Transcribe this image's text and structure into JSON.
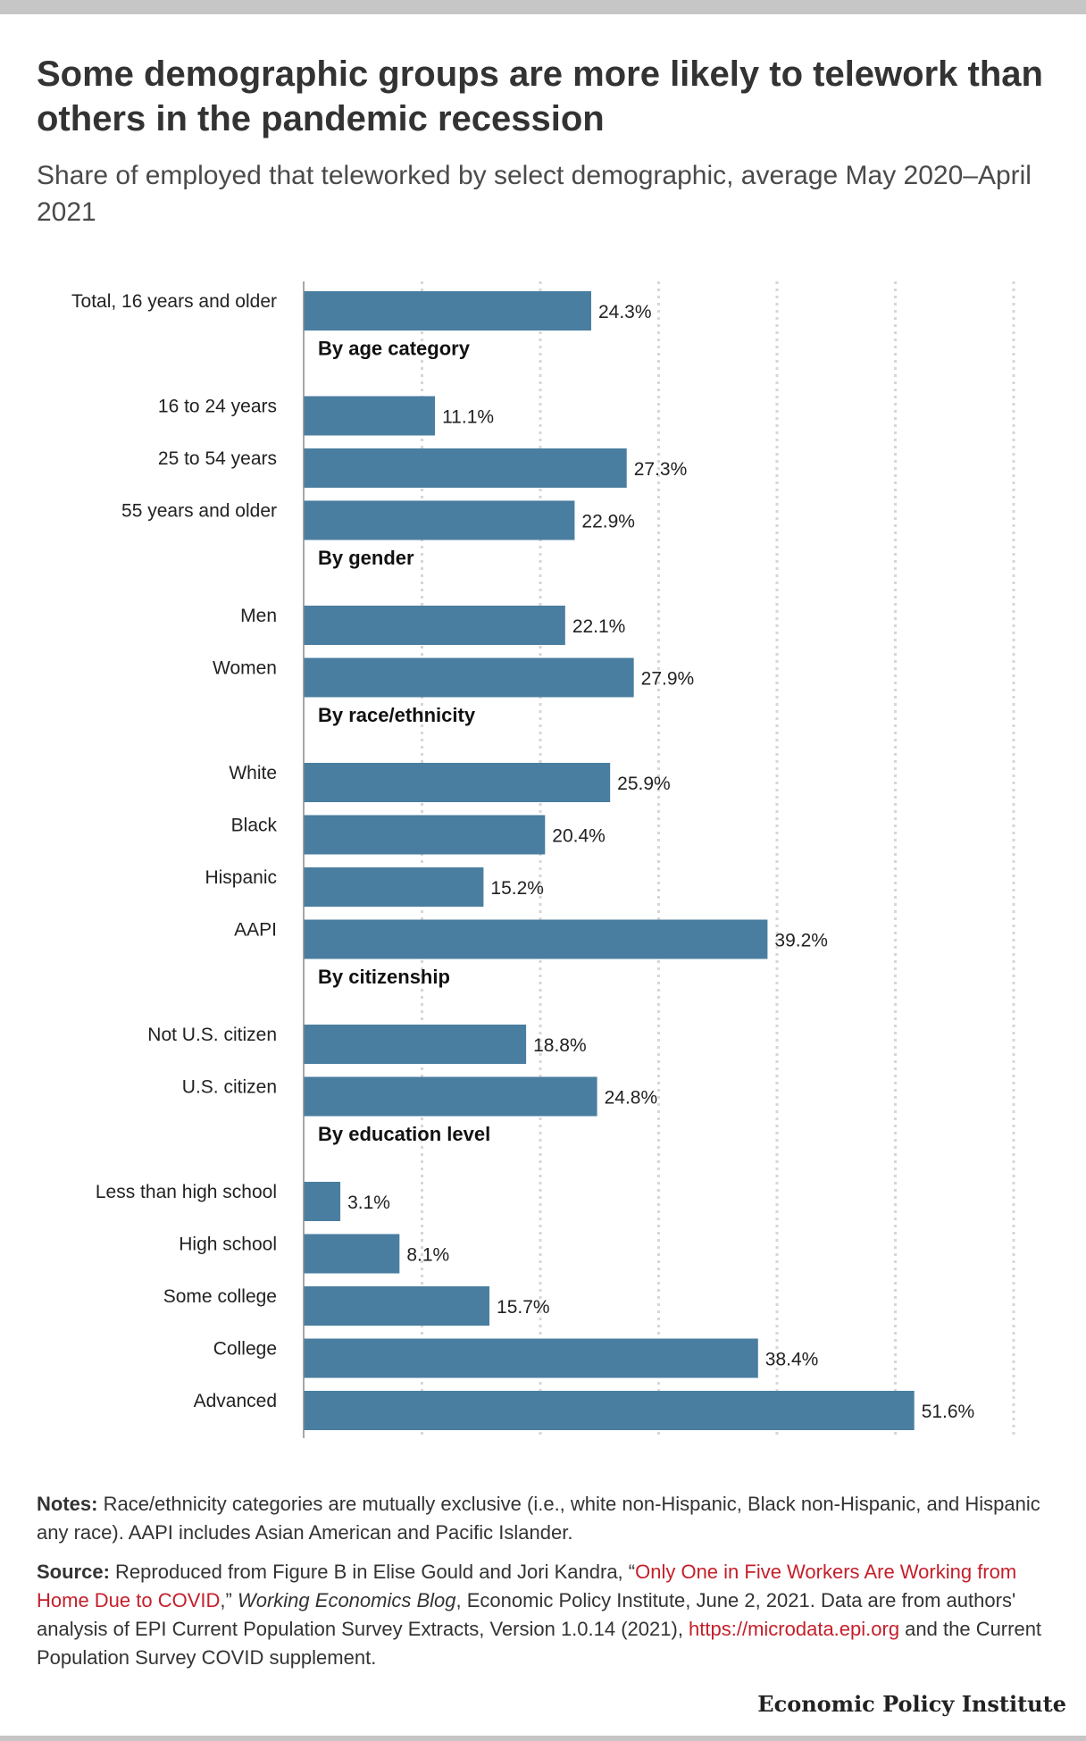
{
  "title": "Some demographic groups are more likely to telework than others in the pandemic recession",
  "subtitle": "Share of employed that teleworked by select demographic, average May 2020–April 2021",
  "chart_data": {
    "type": "bar",
    "orientation": "horizontal",
    "xlim": [
      0,
      60
    ],
    "gridlines": [
      10,
      20,
      30,
      40,
      50,
      60
    ],
    "grid": "vertical dotted",
    "bar_color": "#4a7ea0",
    "value_suffix": "%",
    "rows": [
      {
        "kind": "bar",
        "label": "Total, 16 years and older",
        "value": 24.3
      },
      {
        "kind": "header",
        "label": "By age category"
      },
      {
        "kind": "bar",
        "label": "16 to 24 years",
        "value": 11.1
      },
      {
        "kind": "bar",
        "label": "25 to 54 years",
        "value": 27.3
      },
      {
        "kind": "bar",
        "label": "55 years and older",
        "value": 22.9
      },
      {
        "kind": "header",
        "label": "By gender"
      },
      {
        "kind": "bar",
        "label": "Men",
        "value": 22.1
      },
      {
        "kind": "bar",
        "label": "Women",
        "value": 27.9
      },
      {
        "kind": "header",
        "label": "By race/ethnicity"
      },
      {
        "kind": "bar",
        "label": "White",
        "value": 25.9
      },
      {
        "kind": "bar",
        "label": "Black",
        "value": 20.4
      },
      {
        "kind": "bar",
        "label": "Hispanic",
        "value": 15.2
      },
      {
        "kind": "bar",
        "label": "AAPI",
        "value": 39.2
      },
      {
        "kind": "header",
        "label": "By citizenship"
      },
      {
        "kind": "bar",
        "label": "Not U.S. citizen",
        "value": 18.8
      },
      {
        "kind": "bar",
        "label": "U.S. citizen",
        "value": 24.8
      },
      {
        "kind": "header",
        "label": "By education level"
      },
      {
        "kind": "bar",
        "label": "Less than high school",
        "value": 3.1
      },
      {
        "kind": "bar",
        "label": "High school",
        "value": 8.1
      },
      {
        "kind": "bar",
        "label": "Some college",
        "value": 15.7
      },
      {
        "kind": "bar",
        "label": "College",
        "value": 38.4
      },
      {
        "kind": "bar",
        "label": "Advanced",
        "value": 51.6
      }
    ]
  },
  "notes": {
    "lead": "Notes:",
    "text": " Race/ethnicity categories are mutually exclusive (i.e., white non-Hispanic, Black non-Hispanic, and Hispanic any race). AAPI includes Asian American and Pacific Islander."
  },
  "source": {
    "lead": "Source:",
    "text1": " Reproduced from Figure B in Elise Gould and Jori Kandra, “",
    "link_text": "Only One in Five Workers Are Working from Home Due to COVID",
    "text2": ",” ",
    "italic": "Working Economics Blog",
    "text3": ", Economic Policy Institute, June 2, 2021. Data are from authors' analysis of EPI Current Population Survey Extracts, Version 1.0.14 (2021), ",
    "url": "https://microdata.epi.org",
    "text4": " and the Current Population Survey COVID supplement."
  },
  "brand": "Economic Policy Institute"
}
